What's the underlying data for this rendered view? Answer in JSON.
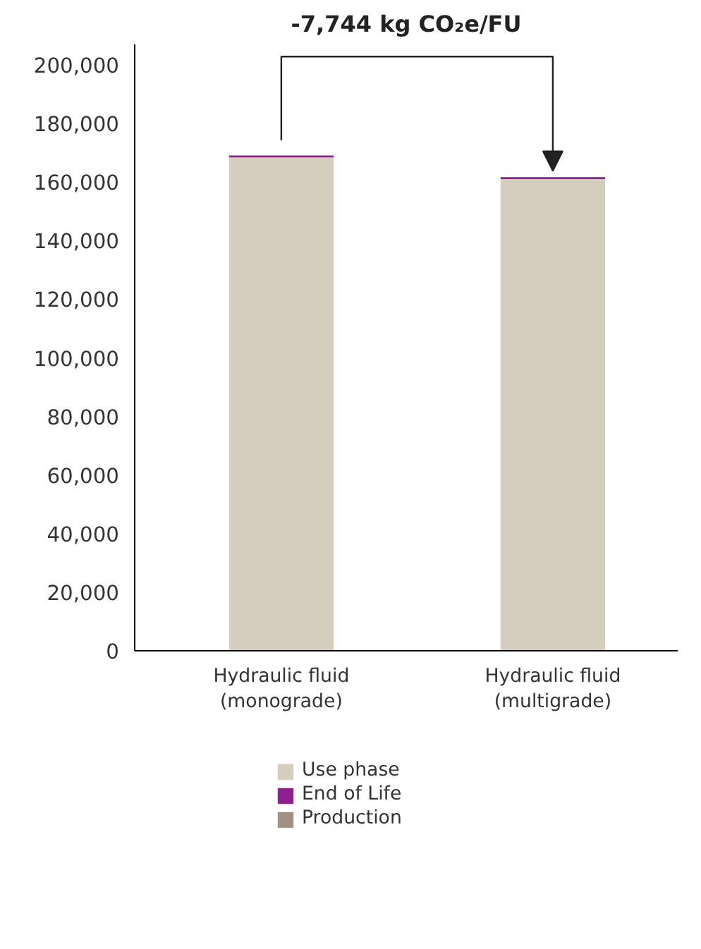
{
  "chart_data": {
    "type": "bar",
    "stacked": true,
    "categories": [
      "Hydraulic fluid\n(monograde)",
      "Hydraulic fluid\n(multigrade)"
    ],
    "series": [
      {
        "name": "Use phase",
        "color": "#d5cdbd",
        "values": [
          168400,
          161000
        ]
      },
      {
        "name": "End of Life",
        "color": "#8e1f8e",
        "values": [
          700,
          700
        ]
      },
      {
        "name": "Production",
        "color": "#9e9183",
        "values": [
          0,
          0
        ]
      }
    ],
    "annotations": [
      "-7,744 kg CO₂e/FU"
    ],
    "ylim": [
      0,
      207000
    ],
    "yticks": [
      {
        "value": 0,
        "label": "0"
      },
      {
        "value": 20000,
        "label": "20,000"
      },
      {
        "value": 40000,
        "label": "40,000"
      },
      {
        "value": 60000,
        "label": "60,000"
      },
      {
        "value": 80000,
        "label": "80,000"
      },
      {
        "value": 100000,
        "label": "100,000"
      },
      {
        "value": 120000,
        "label": "120,000"
      },
      {
        "value": 140000,
        "label": "140,000"
      },
      {
        "value": 160000,
        "label": "160,000"
      },
      {
        "value": 180000,
        "label": "180,000"
      },
      {
        "value": 200000,
        "label": "200,000"
      }
    ],
    "grid": false,
    "legend": "bottom"
  }
}
